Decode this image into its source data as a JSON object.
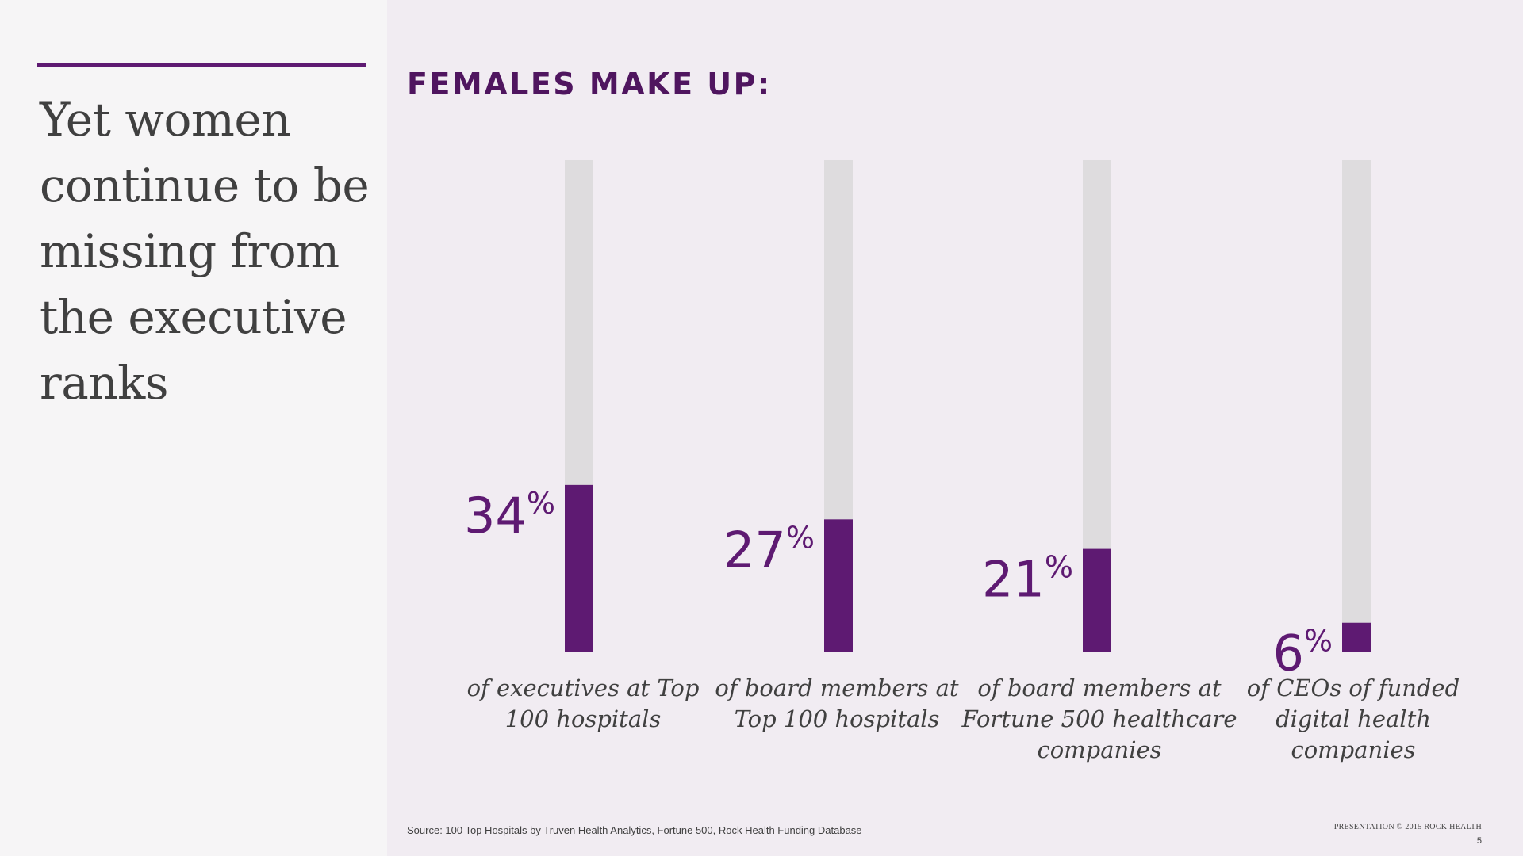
{
  "headline": "Yet women continue to be missing from the executive ranks",
  "section_title": "FEMALES MAKE UP:",
  "colors": {
    "accent": "#5e1a72",
    "track": "#dedcde",
    "value_text": "#5e1a72",
    "label_text": "#404040"
  },
  "chart_data": {
    "type": "bar",
    "orientation": "vertical",
    "ylim": [
      0,
      100
    ],
    "value_suffix": "%",
    "categories": [
      [
        "of executives at Top",
        "100 hospitals"
      ],
      [
        "of board members at",
        "Top 100 hospitals"
      ],
      [
        "of board members at",
        "Fortune 500 healthcare",
        "companies"
      ],
      [
        "of CEOs of funded",
        "digital health",
        "companies"
      ]
    ],
    "values": [
      34,
      27,
      21,
      6
    ],
    "value_labels": [
      "34",
      "27",
      "21",
      "6"
    ]
  },
  "footer": {
    "source": "Source: 100 Top Hospitals by Truven Health Analytics, Fortune 500, Rock Health Funding Database",
    "copyright": "Presentation © 2015 Rock Health",
    "page_number": "5"
  }
}
